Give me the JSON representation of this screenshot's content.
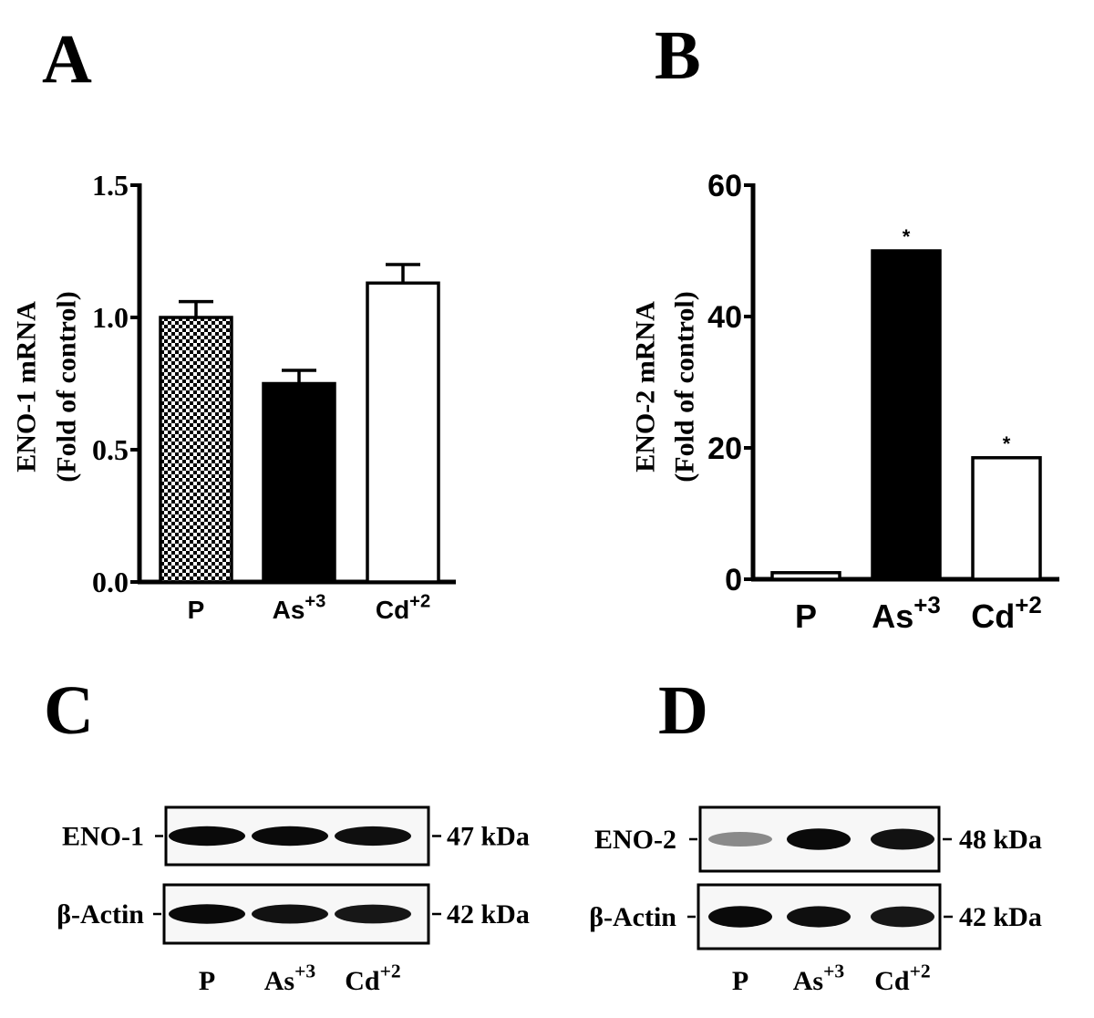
{
  "panels": {
    "a": "A",
    "b": "B",
    "c": "C",
    "d": "D"
  },
  "chart_data": [
    {
      "type": "bar",
      "panel": "A",
      "categories": [
        "P",
        "As",
        "Cd"
      ],
      "category_superscripts": [
        "",
        "+3",
        "+2"
      ],
      "values": [
        1.0,
        0.75,
        1.13
      ],
      "errors": [
        0.06,
        0.05,
        0.07
      ],
      "bar_styles": [
        "checkered",
        "solid-black",
        "white"
      ],
      "significance": [
        "",
        "",
        ""
      ],
      "ylabel_line1": "ENO-1 mRNA",
      "ylabel_line2": "(Fold of control)",
      "ylim": [
        0,
        1.5
      ],
      "yticks": [
        0,
        0.5,
        1.0,
        1.5
      ],
      "ytick_labels": [
        "0.0",
        "0.5",
        "1.0",
        "1.5"
      ]
    },
    {
      "type": "bar",
      "panel": "B",
      "categories": [
        "P",
        "As",
        "Cd"
      ],
      "category_superscripts": [
        "",
        "+3",
        "+2"
      ],
      "values": [
        1.0,
        50.0,
        18.5
      ],
      "errors": [
        0,
        0,
        0
      ],
      "bar_styles": [
        "white",
        "solid-black",
        "white"
      ],
      "significance": [
        "",
        "*",
        "*"
      ],
      "ylabel_line1": "ENO-2 mRNA",
      "ylabel_line2": "(Fold of control)",
      "ylim": [
        0,
        60
      ],
      "yticks": [
        0,
        20,
        40,
        60
      ],
      "ytick_labels": [
        "0",
        "20",
        "40",
        "60"
      ]
    }
  ],
  "blot_c": {
    "rows": [
      {
        "label": "ENO-1",
        "size": "47 kDa",
        "intensities": [
          0.95,
          0.95,
          0.92
        ]
      },
      {
        "label": "β-Actin",
        "size": "42 kDa",
        "intensities": [
          0.95,
          0.9,
          0.88
        ]
      }
    ],
    "lanes": [
      {
        "base": "P",
        "sup": ""
      },
      {
        "base": "As",
        "sup": "+3"
      },
      {
        "base": "Cd",
        "sup": "+2"
      }
    ]
  },
  "blot_d": {
    "rows": [
      {
        "label": "ENO-2",
        "size": "48 kDa",
        "intensities": [
          0.25,
          0.95,
          0.9
        ]
      },
      {
        "label": "β-Actin",
        "size": "42 kDa",
        "intensities": [
          0.95,
          0.92,
          0.88
        ]
      }
    ],
    "lanes": [
      {
        "base": "P",
        "sup": ""
      },
      {
        "base": "As",
        "sup": "+3"
      },
      {
        "base": "Cd",
        "sup": "+2"
      }
    ]
  }
}
